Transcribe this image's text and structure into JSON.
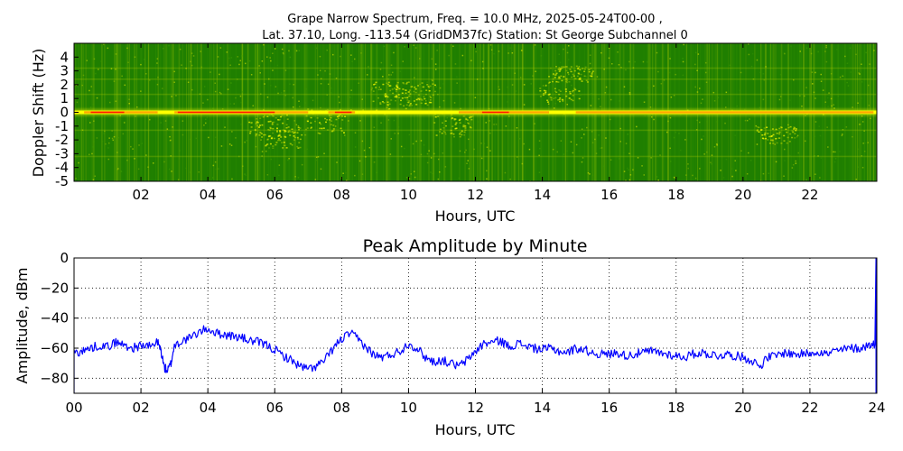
{
  "chart_data": [
    {
      "type": "heatmap",
      "title": "Grape Narrow Spectrum, Freq. = 10.0 MHz, 2025-05-24T00-00 ,",
      "subtitle": "Lat.  37.10, Long. -113.54 (GridDM37fc) Station: St George Subchannel 0",
      "xlabel": "Hours, UTC",
      "ylabel": "Doppler Shift (Hz)",
      "xlim": [
        0,
        24
      ],
      "ylim": [
        -5,
        5
      ],
      "x_ticks": [
        "02",
        "04",
        "06",
        "08",
        "10",
        "12",
        "14",
        "16",
        "18",
        "20",
        "22"
      ],
      "y_ticks": [
        "4",
        "3",
        "2",
        "1",
        "0",
        "-1",
        "-2",
        "-3",
        "-4",
        "-5"
      ],
      "colormap": [
        "#1a7a00",
        "#3c9a00",
        "#b8d400",
        "#ffff00",
        "#ff8a00",
        "#ff0000"
      ],
      "carrier_doppler_hz": 0.0
    },
    {
      "type": "line",
      "title": "Peak Amplitude by Minute",
      "xlabel": "Hours, UTC",
      "ylabel": "Amplitude, dBm",
      "xlim": [
        0,
        24
      ],
      "ylim": [
        -90,
        0
      ],
      "grid": true,
      "x_ticks": [
        "00",
        "02",
        "04",
        "06",
        "08",
        "10",
        "12",
        "14",
        "16",
        "18",
        "20",
        "22",
        "24"
      ],
      "y_ticks": [
        "0",
        "−20",
        "−40",
        "−60",
        "−80"
      ],
      "line_color": "#0000ff",
      "x": [
        0.0,
        0.25,
        0.5,
        0.75,
        1.0,
        1.25,
        1.5,
        1.75,
        2.0,
        2.25,
        2.5,
        2.6,
        2.7,
        2.8,
        2.9,
        3.0,
        3.25,
        3.5,
        3.75,
        4.0,
        4.25,
        4.5,
        4.75,
        5.0,
        5.25,
        5.5,
        5.75,
        6.0,
        6.25,
        6.5,
        6.75,
        7.0,
        7.25,
        7.5,
        7.75,
        8.0,
        8.25,
        8.5,
        8.75,
        9.0,
        9.25,
        9.5,
        9.75,
        10.0,
        10.25,
        10.5,
        10.75,
        11.0,
        11.25,
        11.5,
        11.75,
        12.0,
        12.25,
        12.5,
        12.75,
        13.0,
        13.25,
        13.5,
        13.75,
        14.0,
        14.25,
        14.5,
        14.75,
        15.0,
        15.25,
        15.5,
        15.75,
        16.0,
        16.25,
        16.5,
        16.75,
        17.0,
        17.25,
        17.5,
        17.75,
        18.0,
        18.25,
        18.5,
        18.75,
        19.0,
        19.25,
        19.5,
        19.75,
        20.0,
        20.25,
        20.5,
        20.75,
        21.0,
        21.25,
        21.5,
        21.75,
        22.0,
        22.25,
        22.5,
        22.75,
        23.0,
        23.25,
        23.5,
        23.75,
        23.95
      ],
      "y": [
        -63,
        -62,
        -60,
        -58,
        -59,
        -56,
        -58,
        -60,
        -58,
        -59,
        -56,
        -62,
        -73,
        -75,
        -70,
        -58,
        -55,
        -53,
        -49,
        -47,
        -50,
        -51,
        -52,
        -53,
        -55,
        -56,
        -58,
        -61,
        -65,
        -68,
        -72,
        -74,
        -72,
        -68,
        -60,
        -54,
        -50,
        -54,
        -60,
        -65,
        -66,
        -64,
        -62,
        -57,
        -60,
        -66,
        -69,
        -68,
        -70,
        -72,
        -68,
        -62,
        -57,
        -56,
        -55,
        -59,
        -57,
        -58,
        -60,
        -61,
        -60,
        -62,
        -63,
        -60,
        -61,
        -63,
        -64,
        -64,
        -63,
        -65,
        -64,
        -63,
        -62,
        -63,
        -64,
        -65,
        -66,
        -64,
        -63,
        -64,
        -65,
        -64,
        -65,
        -66,
        -68,
        -72,
        -66,
        -65,
        -63,
        -64,
        -64,
        -63,
        -62,
        -64,
        -62,
        -61,
        -60,
        -60,
        -58,
        -57
      ],
      "end_spike": {
        "x": 23.98,
        "y": 0
      }
    }
  ]
}
